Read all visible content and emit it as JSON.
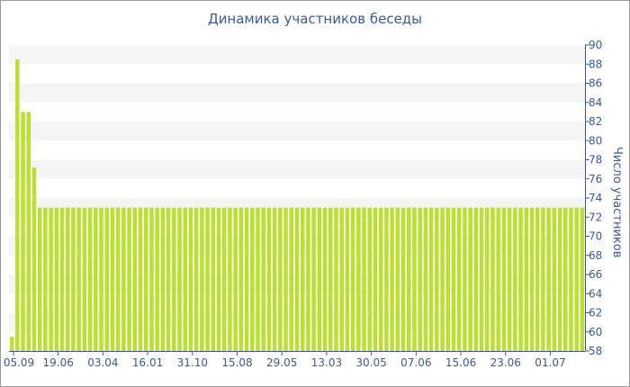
{
  "chart_data": {
    "type": "bar",
    "title": "Динамика участников беседы",
    "ylabel": "Число участников",
    "xlabel": "",
    "ylim": [
      58,
      90
    ],
    "yticks": [
      58,
      60,
      62,
      64,
      66,
      68,
      70,
      72,
      74,
      76,
      78,
      80,
      82,
      84,
      86,
      88,
      90
    ],
    "y_axis_side": "right",
    "grid": "horizontal alternating bands",
    "bar_color": "#bbe030",
    "xtick_labels": [
      "05.09",
      "19.06",
      "03.04",
      "16.01",
      "31.10",
      "15.08",
      "29.05",
      "13.03",
      "30.05",
      "07.06",
      "15.06",
      "23.06",
      "01.07"
    ],
    "xtick_bar_index": [
      1,
      9,
      17,
      25,
      33,
      41,
      49,
      57,
      65,
      73,
      81,
      89,
      97
    ],
    "series": [
      {
        "values": [
          59.5,
          88.5,
          83,
          83,
          77.2,
          73,
          73,
          73,
          73,
          73,
          73,
          73,
          73,
          73,
          73,
          73,
          73,
          73,
          73,
          73,
          73,
          73,
          73,
          73,
          73,
          73,
          73,
          73,
          73,
          73,
          73,
          73,
          73,
          73,
          73,
          73,
          73,
          73,
          73,
          73,
          73,
          73,
          73,
          73,
          73,
          73,
          73,
          73,
          73,
          73,
          73,
          73,
          73,
          73,
          73,
          73,
          73,
          73,
          73,
          73,
          73,
          73,
          73,
          73,
          73,
          73,
          73,
          73,
          73,
          73,
          73,
          73,
          73,
          73,
          73,
          73,
          73,
          73,
          73,
          73,
          73,
          73,
          73,
          73,
          73,
          73,
          73,
          73,
          73,
          73,
          73,
          73,
          73,
          73,
          73,
          73,
          73,
          73,
          73,
          73,
          73,
          73,
          73
        ]
      }
    ]
  }
}
